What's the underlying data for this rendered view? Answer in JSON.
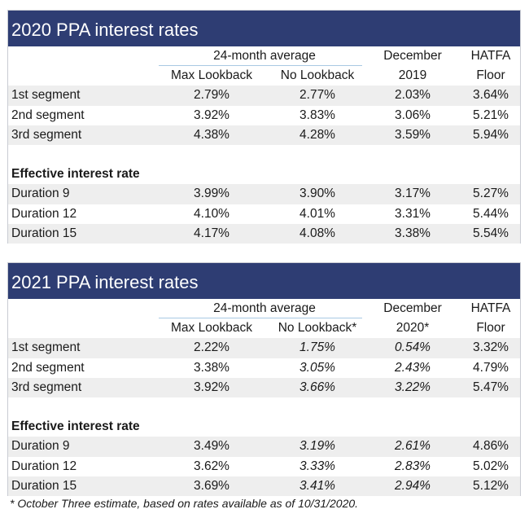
{
  "t2020": {
    "title": "2020 PPA interest rates",
    "h_span": "24-month average",
    "h_dec_top": "December",
    "h_hatfa_top": "HATFA",
    "h_max": "Max Lookback",
    "h_nolb": "No Lookback",
    "h_dec_bot": "2019",
    "h_hatfa_bot": "Floor",
    "segments": [
      {
        "label": "1st segment",
        "max": "2.79%",
        "nolb": "2.77%",
        "dec": "2.03%",
        "hatfa": "3.64%"
      },
      {
        "label": "2nd segment",
        "max": "3.92%",
        "nolb": "3.83%",
        "dec": "3.06%",
        "hatfa": "5.21%"
      },
      {
        "label": "3rd segment",
        "max": "4.38%",
        "nolb": "4.28%",
        "dec": "3.59%",
        "hatfa": "5.94%"
      }
    ],
    "eff_title": "Effective interest rate",
    "durations": [
      {
        "label": "Duration 9",
        "max": "3.99%",
        "nolb": "3.90%",
        "dec": "3.17%",
        "hatfa": "5.27%"
      },
      {
        "label": "Duration 12",
        "max": "4.10%",
        "nolb": "4.01%",
        "dec": "3.31%",
        "hatfa": "5.44%"
      },
      {
        "label": "Duration 15",
        "max": "4.17%",
        "nolb": "4.08%",
        "dec": "3.38%",
        "hatfa": "5.54%"
      }
    ]
  },
  "t2021": {
    "title": "2021 PPA interest rates",
    "h_span": "24-month average",
    "h_dec_top": "December",
    "h_hatfa_top": "HATFA",
    "h_max": "Max Lookback",
    "h_nolb": "No Lookback*",
    "h_dec_bot": "2020*",
    "h_hatfa_bot": "Floor",
    "segments": [
      {
        "label": "1st segment",
        "max": "2.22%",
        "nolb": "1.75%",
        "dec": "0.54%",
        "hatfa": "3.32%"
      },
      {
        "label": "2nd segment",
        "max": "3.38%",
        "nolb": "3.05%",
        "dec": "2.43%",
        "hatfa": "4.79%"
      },
      {
        "label": "3rd segment",
        "max": "3.92%",
        "nolb": "3.66%",
        "dec": "3.22%",
        "hatfa": "5.47%"
      }
    ],
    "eff_title": "Effective interest rate",
    "durations": [
      {
        "label": "Duration 9",
        "max": "3.49%",
        "nolb": "3.19%",
        "dec": "2.61%",
        "hatfa": "4.86%"
      },
      {
        "label": "Duration 12",
        "max": "3.62%",
        "nolb": "3.33%",
        "dec": "2.83%",
        "hatfa": "5.02%"
      },
      {
        "label": "Duration 15",
        "max": "3.69%",
        "nolb": "3.41%",
        "dec": "2.94%",
        "hatfa": "5.12%"
      }
    ]
  },
  "footnote": "* October Three estimate, based on rates available as of 10/31/2020."
}
